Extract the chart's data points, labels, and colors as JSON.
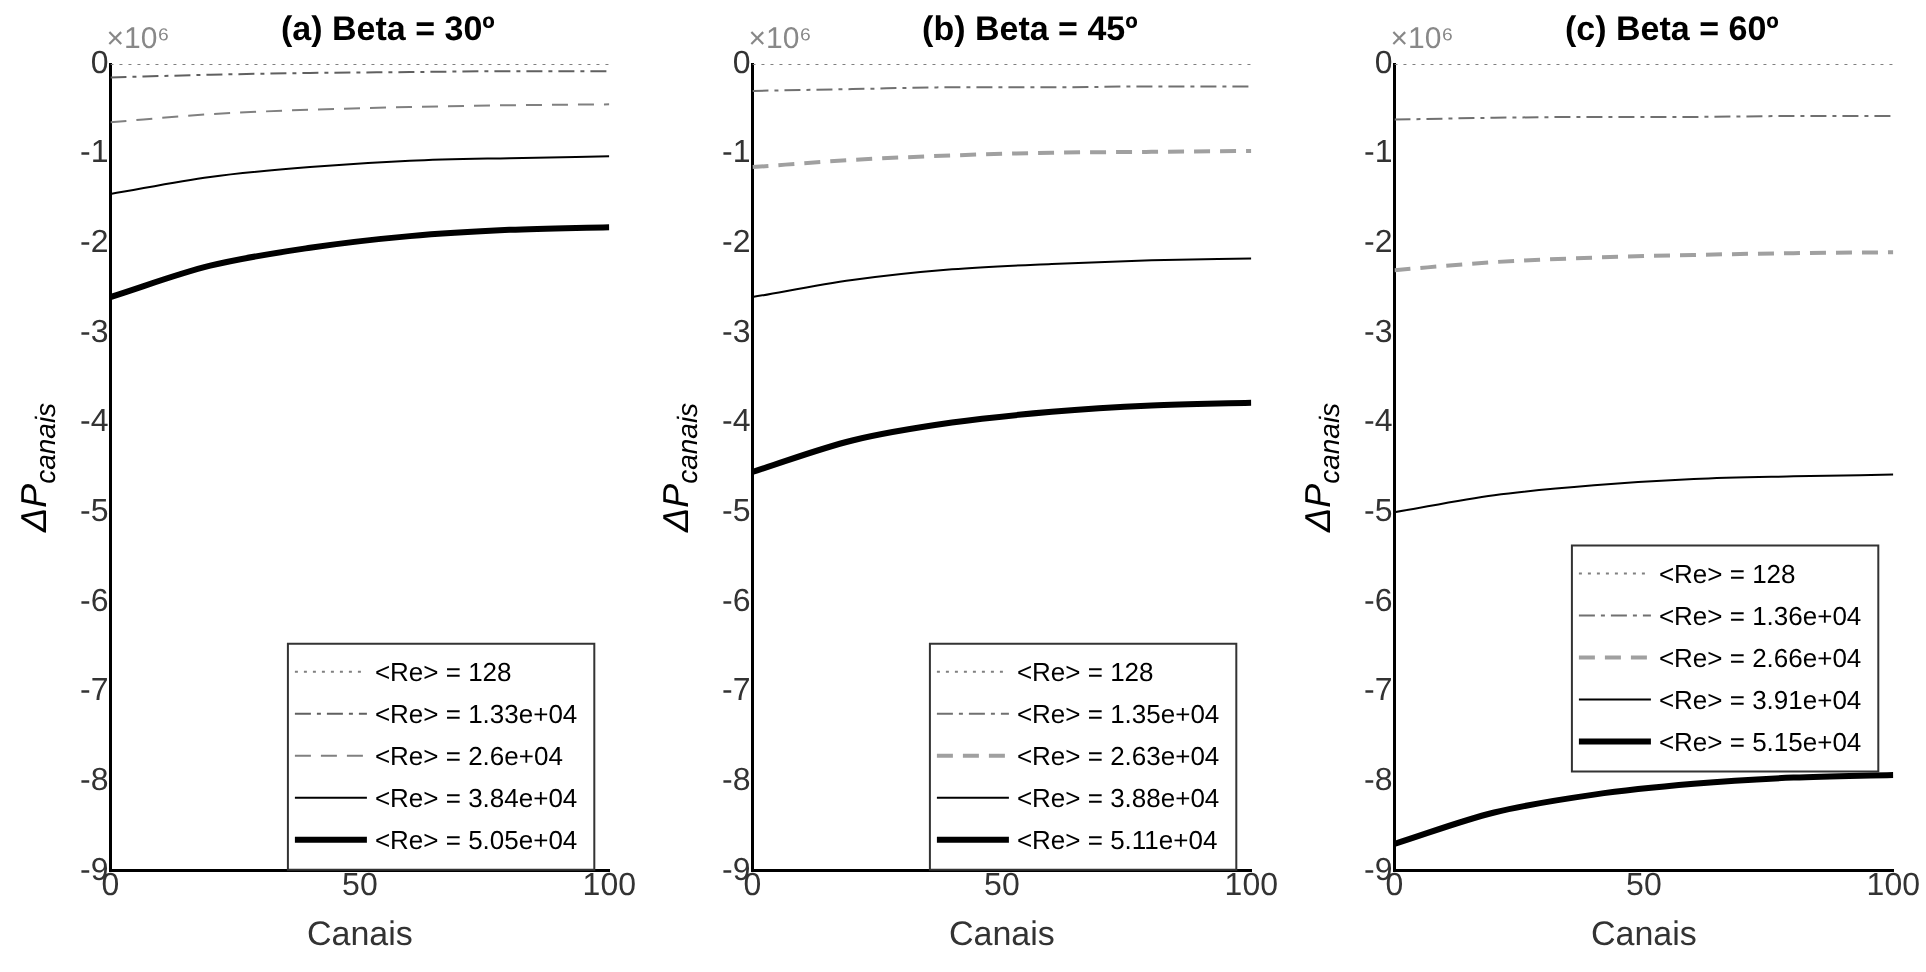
{
  "chart_data": [
    {
      "type": "line",
      "title": "(a) Beta = 30º",
      "xlabel": "Canais",
      "ylabel": "ΔP$_{canais}$",
      "annotations": [
        "×10⁶"
      ],
      "x": [
        0,
        20,
        40,
        60,
        80,
        100
      ],
      "xlim": [
        0,
        100
      ],
      "xticks": [
        0,
        50,
        100
      ],
      "ylim": [
        -9,
        0
      ],
      "yticks": [
        -9,
        -8,
        -7,
        -6,
        -5,
        -4,
        -3,
        -2,
        -1,
        0
      ],
      "grid": false,
      "legend": "bottom right",
      "marker": "none",
      "series": [
        {
          "name": "<Re> = 128",
          "color": "#808080",
          "line_style": "dotted",
          "values": [
            0,
            0,
            0,
            0,
            0,
            0
          ]
        },
        {
          "name": "<Re> = 1.33e+04",
          "color": "#606060",
          "line_style": "dashdot",
          "values": [
            -0.15,
            -0.12,
            -0.1,
            -0.09,
            -0.08,
            -0.08
          ]
        },
        {
          "name": "<Re> = 2.6e+04",
          "color": "#808080",
          "line_style": "dashed",
          "values": [
            -0.65,
            -0.56,
            -0.51,
            -0.48,
            -0.46,
            -0.45
          ]
        },
        {
          "name": "<Re> = 3.84e+04",
          "color": "#000000",
          "line_style": "solid",
          "values": [
            -1.45,
            -1.26,
            -1.15,
            -1.08,
            -1.05,
            -1.03
          ]
        },
        {
          "name": "<Re> = 5.05e+04",
          "color": "#000000",
          "line_style": "solid",
          "values": [
            -2.6,
            -2.25,
            -2.05,
            -1.92,
            -1.85,
            -1.82
          ]
        }
      ]
    },
    {
      "type": "line",
      "title": "(b) Beta = 45º",
      "xlabel": "Canais",
      "ylabel": "ΔP$_{canais}$",
      "annotations": [
        "×10⁶"
      ],
      "x": [
        0,
        20,
        40,
        60,
        80,
        100
      ],
      "xlim": [
        0,
        100
      ],
      "xticks": [
        0,
        50,
        100
      ],
      "ylim": [
        -9,
        0
      ],
      "yticks": [
        -9,
        -8,
        -7,
        -6,
        -5,
        -4,
        -3,
        -2,
        -1,
        0
      ],
      "grid": false,
      "legend": "bottom right",
      "marker": "none",
      "series": [
        {
          "name": "<Re> = 128",
          "color": "#808080",
          "line_style": "dotted",
          "values": [
            0,
            0,
            0,
            0,
            0,
            0
          ]
        },
        {
          "name": "<Re> = 1.35e+04",
          "color": "#707070",
          "line_style": "dashdot",
          "values": [
            -0.3,
            -0.28,
            -0.26,
            -0.26,
            -0.25,
            -0.25
          ]
        },
        {
          "name": "<Re> = 2.63e+04",
          "color": "#a0a0a0",
          "line_style": "dashed",
          "values": [
            -1.15,
            -1.07,
            -1.02,
            -0.99,
            -0.98,
            -0.97
          ]
        },
        {
          "name": "<Re> = 3.88e+04",
          "color": "#000000",
          "line_style": "solid",
          "values": [
            -2.6,
            -2.41,
            -2.29,
            -2.23,
            -2.19,
            -2.17
          ]
        },
        {
          "name": "<Re> = 5.11e+04",
          "color": "#000000",
          "line_style": "solid",
          "values": [
            -4.55,
            -4.2,
            -4.0,
            -3.88,
            -3.81,
            -3.78
          ]
        }
      ]
    },
    {
      "type": "line",
      "title": "(c) Beta = 60º",
      "xlabel": "Canais",
      "ylabel": "ΔP$_{canais}$",
      "annotations": [
        "×10⁶"
      ],
      "x": [
        0,
        20,
        40,
        60,
        80,
        100
      ],
      "xlim": [
        0,
        100
      ],
      "xticks": [
        0,
        50,
        100
      ],
      "ylim": [
        -9,
        0
      ],
      "yticks": [
        -9,
        -8,
        -7,
        -6,
        -5,
        -4,
        -3,
        -2,
        -1,
        0
      ],
      "grid": false,
      "legend": "right",
      "marker": "none",
      "series": [
        {
          "name": "<Re> = 128",
          "color": "#808080",
          "line_style": "dotted",
          "values": [
            0,
            0,
            0,
            0,
            0,
            0
          ]
        },
        {
          "name": "<Re> = 1.36e+04",
          "color": "#707070",
          "line_style": "dashdot",
          "values": [
            -0.62,
            -0.6,
            -0.59,
            -0.59,
            -0.58,
            -0.58
          ]
        },
        {
          "name": "<Re> = 2.66e+04",
          "color": "#a0a0a0",
          "line_style": "dashed",
          "values": [
            -2.3,
            -2.21,
            -2.16,
            -2.13,
            -2.11,
            -2.1
          ]
        },
        {
          "name": "<Re> = 3.91e+04",
          "color": "#000000",
          "line_style": "solid",
          "values": [
            -5.0,
            -4.81,
            -4.7,
            -4.63,
            -4.6,
            -4.58
          ]
        },
        {
          "name": "<Re> = 5.15e+04",
          "color": "#000000",
          "line_style": "solid",
          "values": [
            -8.7,
            -8.35,
            -8.15,
            -8.03,
            -7.96,
            -7.93
          ]
        }
      ]
    }
  ]
}
